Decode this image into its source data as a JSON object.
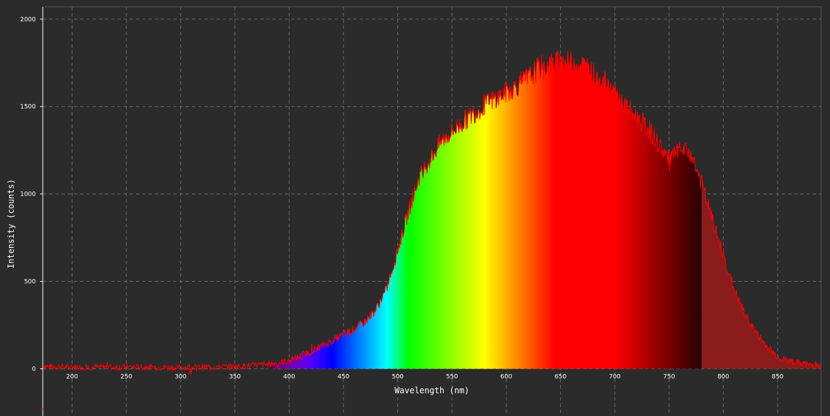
{
  "chart_data": {
    "type": "area",
    "title": "",
    "xlabel": "Wavelength (nm)",
    "ylabel": "Intensity (counts)",
    "xlim": [
      173,
      890
    ],
    "ylim": [
      -270,
      2070
    ],
    "x_ticks": [
      200,
      250,
      300,
      350,
      400,
      450,
      500,
      550,
      600,
      650,
      700,
      750,
      800,
      850
    ],
    "y_ticks": [
      0,
      500,
      1000,
      1500,
      2000
    ],
    "grid": true,
    "series": [
      {
        "color": "#ff0000",
        "x": [
          173,
          200,
          250,
          300,
          350,
          380,
          400,
          420,
          440,
          460,
          470,
          480,
          490,
          500,
          510,
          520,
          540,
          560,
          580,
          600,
          620,
          630,
          650,
          670,
          690,
          710,
          730,
          750,
          760,
          770,
          780,
          790,
          800,
          810,
          820,
          830,
          840,
          850,
          860,
          870,
          880,
          890
        ],
        "y": [
          15,
          10,
          10,
          8,
          12,
          25,
          45,
          100,
          160,
          230,
          270,
          340,
          460,
          680,
          900,
          1100,
          1300,
          1410,
          1510,
          1580,
          1660,
          1720,
          1760,
          1740,
          1640,
          1500,
          1380,
          1200,
          1250,
          1230,
          1060,
          850,
          650,
          450,
          310,
          210,
          130,
          70,
          45,
          35,
          25,
          20
        ]
      }
    ],
    "spectrum_fill": {
      "visible_range": [
        380,
        780
      ],
      "ir_color": "#8b1c1c"
    }
  }
}
